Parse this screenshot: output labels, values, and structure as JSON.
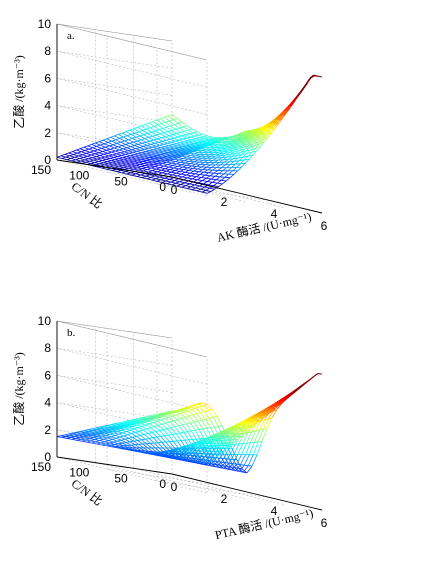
{
  "chart_data": [
    {
      "type": "surface",
      "panel_label": "a.",
      "zlabel": "乙酸 /(kg·m⁻³)",
      "xlabel": "AK 酶活 /(U·mg⁻¹)",
      "ylabel": "C/N 比",
      "xlim": [
        0,
        6
      ],
      "ylim": [
        0,
        150
      ],
      "zlim": [
        0,
        10
      ],
      "x_ticks": [
        "0",
        "2",
        "4",
        "6"
      ],
      "y_ticks": [
        "0",
        "50",
        "100",
        "150"
      ],
      "z_ticks": [
        "0",
        "2",
        "4",
        "6",
        "8",
        "10"
      ],
      "grid": true,
      "colormap": "jet",
      "surface_description_points": [
        {
          "x": 0,
          "y": 150,
          "z": 0.2
        },
        {
          "x": 0,
          "y": 100,
          "z": 1.5
        },
        {
          "x": 0,
          "y": 0,
          "z": 4.6
        },
        {
          "x": 3,
          "y": 0,
          "z": 3.5
        },
        {
          "x": 6,
          "y": 0,
          "z": 8.3
        },
        {
          "x": 6,
          "y": 150,
          "z": 0.5
        }
      ]
    },
    {
      "type": "surface",
      "panel_label": "b.",
      "zlabel": "乙酸 /(kg·m⁻³)",
      "xlabel": "PTA 酶活 /(U·mg⁻¹)",
      "ylabel": "C/N 比",
      "xlim": [
        0,
        6
      ],
      "ylim": [
        0,
        150
      ],
      "zlim": [
        0,
        10
      ],
      "x_ticks": [
        "0",
        "2",
        "4",
        "6"
      ],
      "y_ticks": [
        "0",
        "50",
        "100",
        "150"
      ],
      "z_ticks": [
        "0",
        "2",
        "4",
        "6",
        "8",
        "10"
      ],
      "grid": true,
      "colormap": "jet",
      "surface_description_points": [
        {
          "x": 0,
          "y": 150,
          "z": 1.5
        },
        {
          "x": 0,
          "y": 0,
          "z": 4.6
        },
        {
          "x": 1.5,
          "y": 0,
          "z": 5.6
        },
        {
          "x": 3,
          "y": 0,
          "z": 1.5
        },
        {
          "x": 6,
          "y": 0,
          "z": 8.2
        },
        {
          "x": 6,
          "y": 150,
          "z": 2.0
        }
      ]
    }
  ]
}
